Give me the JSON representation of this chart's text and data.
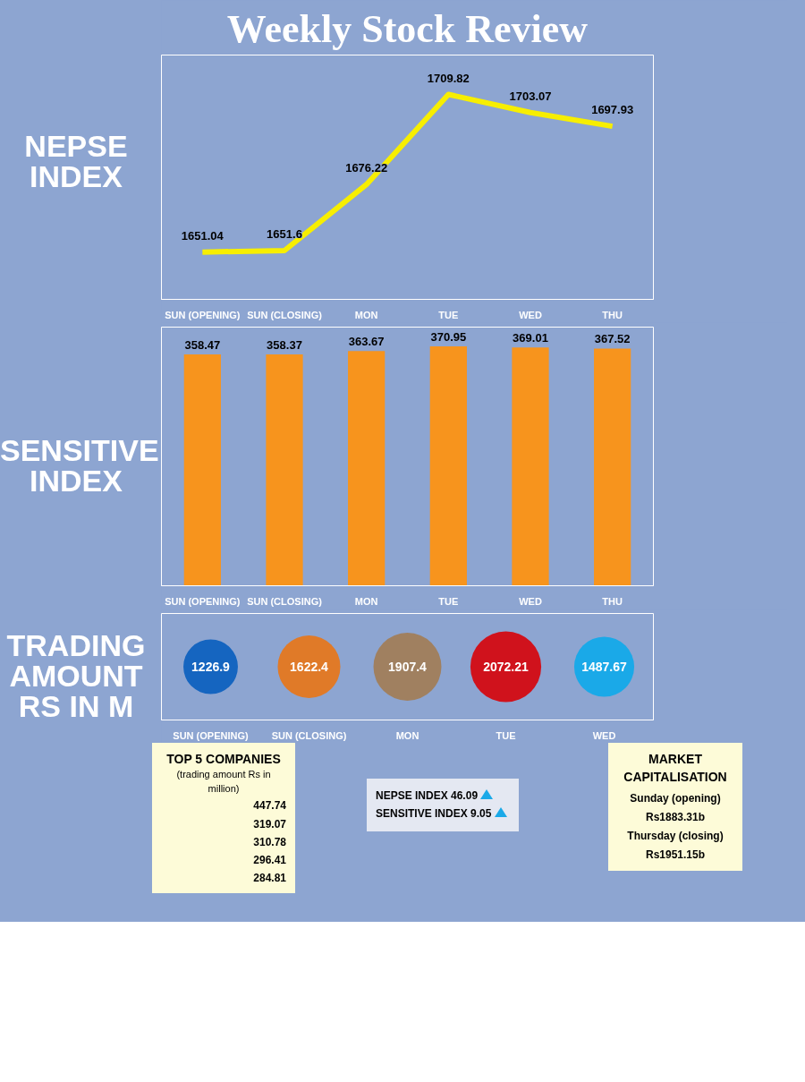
{
  "chart_data": [
    {
      "type": "line",
      "title": "Weekly Stock Review",
      "ylabel": "NEPSE INDEX",
      "categories": [
        "SUN (OPENING)",
        "SUN (CLOSING)",
        "MON",
        "TUE",
        "WED",
        "THU"
      ],
      "values": [
        1651.04,
        1651.6,
        1676.22,
        1709.82,
        1703.07,
        1697.93
      ],
      "color": "#f7ee00",
      "data_labels": true,
      "tick_labels": "x",
      "grid": false
    },
    {
      "type": "bar",
      "ylabel": "SENSITIVE INDEX",
      "categories": [
        "SUN (OPENING)",
        "SUN (CLOSING)",
        "MON",
        "TUE",
        "WED",
        "THU"
      ],
      "values": [
        358.47,
        358.37,
        363.67,
        370.95,
        369.01,
        367.52
      ],
      "color": "#f7941d",
      "data_labels": true,
      "tick_labels": "x",
      "grid": false
    },
    {
      "type": "other",
      "ylabel": "TRADING AMOUNT RS IN M",
      "categories": [
        "SUN (OPENING)",
        "SUN (CLOSING)",
        "MON",
        "TUE",
        "WED"
      ],
      "values": [
        1226.9,
        1622.4,
        1907.4,
        2072.21,
        1487.67
      ],
      "colors": [
        "#1565c0",
        "#e07a28",
        "#a08060",
        "#d0121c",
        "#1aa9e8"
      ],
      "data_labels": true
    },
    {
      "type": "other",
      "title": "TOP 5 COMPANIES",
      "subtitle": "(trading amount Rs in million)",
      "annotations": [
        "447.74",
        "319.07",
        "310.78",
        "296.41",
        "284.81"
      ]
    },
    {
      "type": "other",
      "annotations": [
        "NEPSE INDEX 46.09",
        "SENSITIVE INDEX 9.05"
      ]
    },
    {
      "type": "other",
      "title": "MARKET CAPITALISATION",
      "annotations": [
        "Sunday (opening)",
        "Rs1883.31b",
        "Thursday (closing)",
        "Rs1951.15b"
      ]
    }
  ]
}
